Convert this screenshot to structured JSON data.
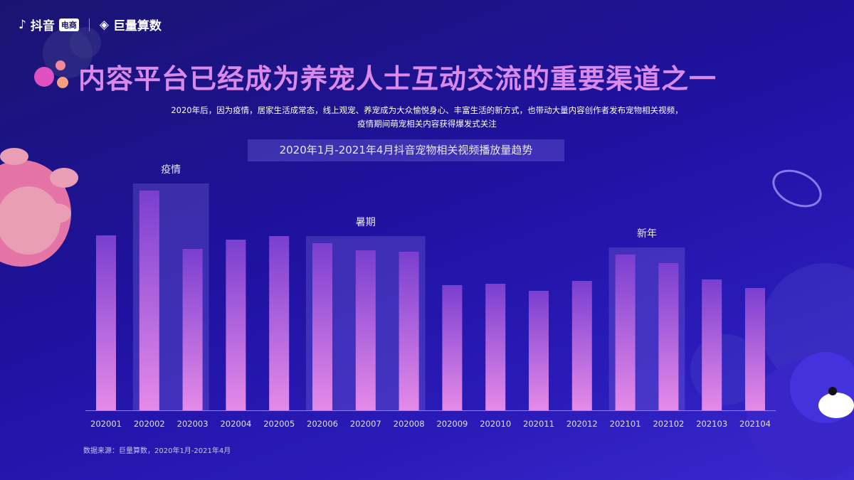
{
  "header": {
    "brand_douyin": "抖音",
    "brand_badge": "电商",
    "brand_suanshu": "巨量算数"
  },
  "title": "内容平台已经成为养宠人士互动交流的重要渠道之一",
  "subtitle_lines": [
    "2020年后，因为疫情，居家生活成常态，线上观宠、养宠成为大众愉悦身心、丰富生活的新方式，也带动大量内容创作者发布宠物相关视频，",
    "疫情期间萌宠相关内容获得爆发式关注"
  ],
  "source": "数据来源：巨量算数，2020年1月-2021年4月",
  "colors": {
    "bar_top": "#7a3fd0",
    "bar_bottom": "#e58ae8",
    "title": "#d98ae8",
    "highlight": "rgba(140,120,230,0.28)"
  },
  "chart_data": {
    "type": "bar",
    "title": "2020年1月-2021年4月抖音宠物相关视频播放量趋势",
    "categories": [
      "202001",
      "202002",
      "202003",
      "202004",
      "202005",
      "202006",
      "202007",
      "202008",
      "202009",
      "202010",
      "202011",
      "202012",
      "202101",
      "202102",
      "202103",
      "202104"
    ],
    "values": [
      246,
      309,
      227,
      240,
      245,
      235,
      225,
      223,
      176,
      178,
      168,
      182,
      219,
      207,
      184,
      172
    ],
    "value_note_unitless": true,
    "ylim": [
      0,
      320
    ],
    "grid": false,
    "highlights": [
      {
        "label": "疫情",
        "from": "202002",
        "to": "202003"
      },
      {
        "label": "暑期",
        "from": "202006",
        "to": "202008"
      },
      {
        "label": "新年",
        "from": "202101",
        "to": "202102"
      }
    ]
  }
}
